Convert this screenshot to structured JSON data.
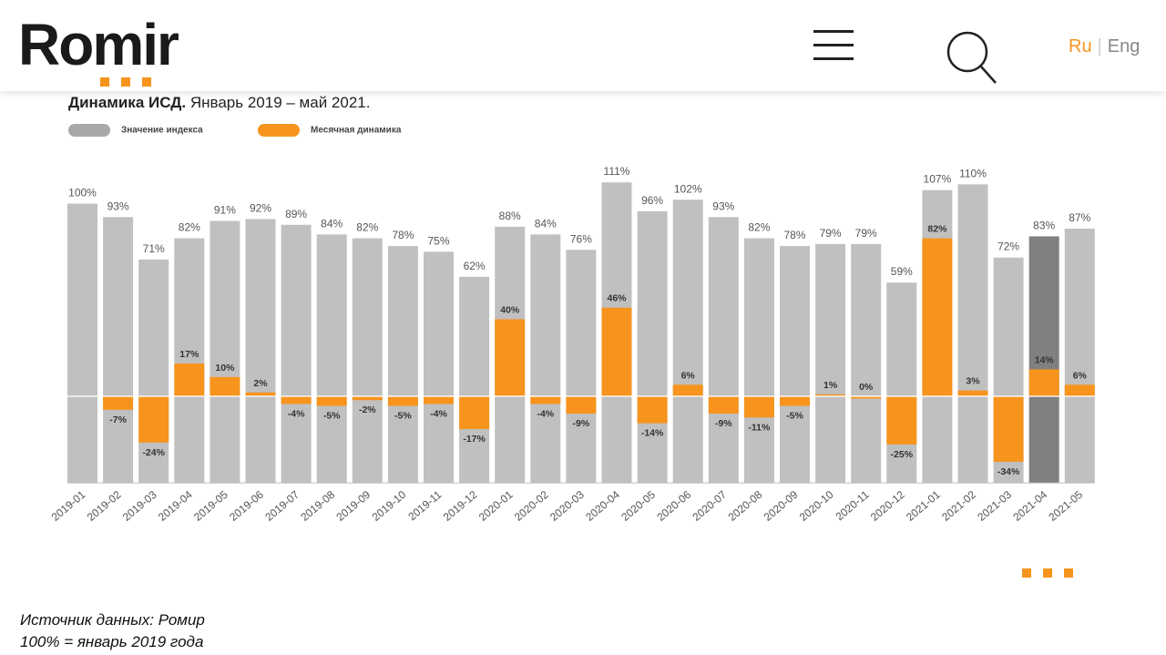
{
  "header": {
    "logo_text": "Romir",
    "lang_ru": "Ru",
    "lang_en": "Eng",
    "menu_icon": "hamburger-menu-icon",
    "search_icon": "search-icon"
  },
  "colors": {
    "accent": "#f7941d",
    "index_bar": "#c0c0c0",
    "highlight_bar": "#808080"
  },
  "chart_data": {
    "type": "bar",
    "title_bold": "Динамика ИСД.",
    "title_rest": " Январь 2019 – май 2021.",
    "legend": [
      "Значение индекса",
      "Месячная динамика"
    ],
    "categories": [
      "2019-01",
      "2019-02",
      "2019-03",
      "2019-04",
      "2019-05",
      "2019-06",
      "2019-07",
      "2019-08",
      "2019-09",
      "2019-10",
      "2019-11",
      "2019-12",
      "2020-01",
      "2020-02",
      "2020-03",
      "2020-04",
      "2020-05",
      "2020-06",
      "2020-07",
      "2020-08",
      "2020-09",
      "2020-10",
      "2020-11",
      "2020-12",
      "2021-01",
      "2021-02",
      "2021-03",
      "2021-04",
      "2021-05"
    ],
    "series": [
      {
        "name": "Значение индекса",
        "values": [
          100,
          93,
          71,
          82,
          91,
          92,
          89,
          84,
          82,
          78,
          75,
          62,
          88,
          84,
          76,
          111,
          96,
          102,
          93,
          82,
          78,
          79,
          79,
          59,
          107,
          110,
          72,
          83,
          87
        ],
        "labels": [
          "100%",
          "93%",
          "71%",
          "82%",
          "91%",
          "92%",
          "89%",
          "84%",
          "82%",
          "78%",
          "75%",
          "62%",
          "88%",
          "84%",
          "76%",
          "111%",
          "96%",
          "102%",
          "93%",
          "82%",
          "78%",
          "79%",
          "79%",
          "59%",
          "107%",
          "110%",
          "72%",
          "83%",
          "87%"
        ]
      },
      {
        "name": "Месячная динамика",
        "values": [
          null,
          -7,
          -24,
          17,
          10,
          2,
          -4,
          -5,
          -2,
          -5,
          -4,
          -17,
          40,
          -4,
          -9,
          46,
          -14,
          6,
          -9,
          -11,
          -5,
          1,
          0,
          -25,
          82,
          3,
          -34,
          14,
          6
        ],
        "labels": [
          "",
          "-7%",
          "-24%",
          "17%",
          "10%",
          "2%",
          "-4%",
          "-5%",
          "-2%",
          "-5%",
          "-4%",
          "-17%",
          "40%",
          "-4%",
          "-9%",
          "46%",
          "-14%",
          "6%",
          "-9%",
          "-11%",
          "-5%",
          "1%",
          "0%",
          "-25%",
          "82%",
          "3%",
          "-34%",
          "14%",
          "6%"
        ]
      }
    ],
    "highlight_category": "2021-04",
    "ylim": [
      -45,
      111
    ],
    "grid": false,
    "legend_position": "top-left"
  },
  "footer": {
    "source": "Источник данных: Ромир",
    "note": "100% = январь 2019 года"
  }
}
